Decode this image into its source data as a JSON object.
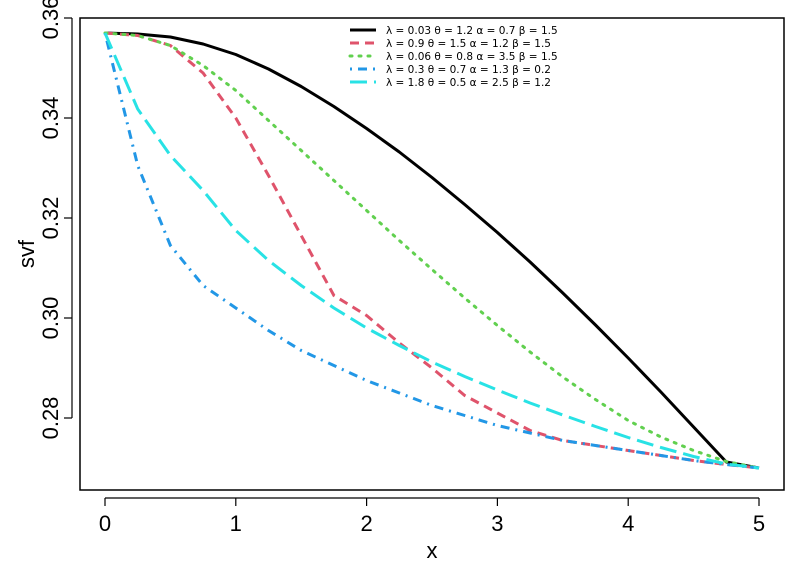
{
  "chart_data": {
    "type": "line",
    "xlabel": "x",
    "ylabel": "svf",
    "xlim": [
      0,
      5
    ],
    "ylim": [
      0.27,
      0.36
    ],
    "x_ticks": [
      0,
      1,
      2,
      3,
      4,
      5
    ],
    "x_tick_labels": [
      "0",
      "1",
      "2",
      "3",
      "4",
      "5"
    ],
    "y_ticks": [
      0.28,
      0.3,
      0.32,
      0.34,
      0.36
    ],
    "y_tick_labels": [
      "0.28",
      "0.30",
      "0.32",
      "0.34",
      "0.36"
    ],
    "legend_position": "top-right",
    "x": [
      0,
      0.25,
      0.5,
      0.75,
      1,
      1.25,
      1.5,
      1.75,
      2,
      2.25,
      2.5,
      2.75,
      3,
      3.25,
      3.5,
      3.75,
      4,
      4.25,
      4.5,
      4.75,
      5
    ],
    "series": [
      {
        "name": "λ = 0.03   θ = 1.2   α = 0.7   β = 1.5",
        "color": "#000000",
        "dash": "solid",
        "values": [
          0.357,
          0.3568,
          0.3562,
          0.3548,
          0.3527,
          0.3498,
          0.3463,
          0.3423,
          0.3379,
          0.3332,
          0.3281,
          0.3227,
          0.3171,
          0.3112,
          0.305,
          0.2986,
          0.292,
          0.2852,
          0.2782,
          0.2712,
          0.27
        ]
      },
      {
        "name": "λ = 0.9   θ = 1.5   α = 1.2   β = 1.5",
        "color": "#DF536B",
        "dash": "dashed",
        "values": [
          0.357,
          0.3565,
          0.3545,
          0.349,
          0.34,
          0.3285,
          0.3165,
          0.3045,
          0.3005,
          0.295,
          0.29,
          0.2845,
          0.281,
          0.2775,
          0.2755,
          0.2745,
          0.2735,
          0.2725,
          0.2715,
          0.2707,
          0.27
        ]
      },
      {
        "name": "λ = 0.06   θ = 0.8   α = 3.5   β = 1.5",
        "color": "#61D04F",
        "dash": "dotted",
        "values": [
          0.357,
          0.3565,
          0.3545,
          0.3505,
          0.3455,
          0.3395,
          0.3335,
          0.3275,
          0.3215,
          0.3155,
          0.3097,
          0.304,
          0.2985,
          0.2932,
          0.2882,
          0.2837,
          0.2795,
          0.2762,
          0.2735,
          0.2713,
          0.27
        ]
      },
      {
        "name": "λ = 0.3   θ = 0.7   α = 1.3   β = 0.2",
        "color": "#2297E6",
        "dash": "dotdash",
        "values": [
          0.357,
          0.3305,
          0.3145,
          0.3065,
          0.302,
          0.2975,
          0.2935,
          0.2905,
          0.2875,
          0.285,
          0.2825,
          0.2805,
          0.2785,
          0.277,
          0.2755,
          0.2745,
          0.2735,
          0.2725,
          0.2715,
          0.2707,
          0.27
        ]
      },
      {
        "name": "λ = 1.8   θ = 0.5   α = 2.5   β = 1.2",
        "color": "#28E2E5",
        "dash": "longdash",
        "values": [
          0.357,
          0.3418,
          0.3325,
          0.3255,
          0.3175,
          0.3115,
          0.3065,
          0.302,
          0.298,
          0.2945,
          0.2912,
          0.2883,
          0.2856,
          0.283,
          0.2806,
          0.2783,
          0.2761,
          0.2741,
          0.2723,
          0.2708,
          0.27
        ]
      }
    ]
  }
}
